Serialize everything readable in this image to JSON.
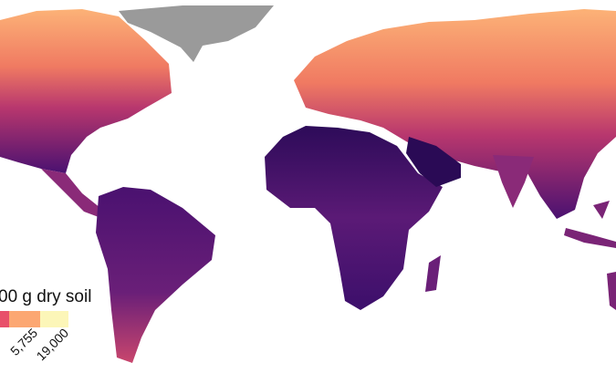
{
  "legend": {
    "title": "00 g dry soil",
    "colors": [
      "#e8506a",
      "#fca772",
      "#fcf6b8"
    ],
    "ticks": [
      {
        "value": 5755,
        "label": "5,755"
      },
      {
        "value": 19000,
        "label": "19,000"
      }
    ]
  }
}
